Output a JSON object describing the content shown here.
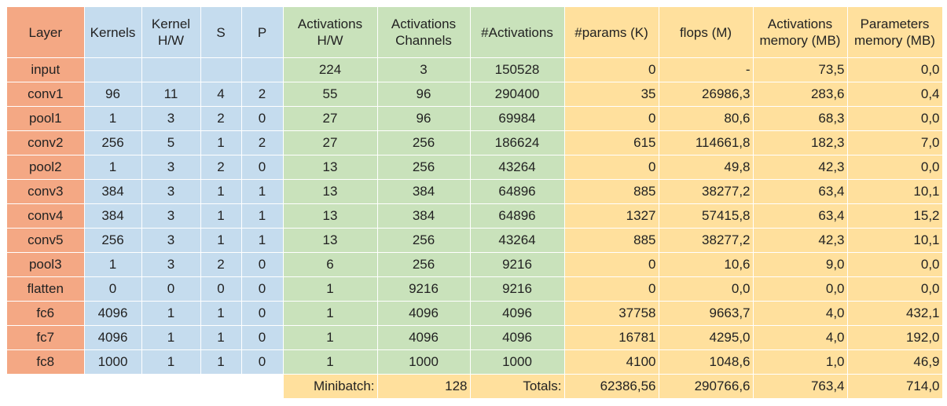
{
  "headers": [
    "Layer",
    "Kernels",
    "Kernel H/W",
    "S",
    "P",
    "Activations H/W",
    "Activations Channels",
    "#Activations",
    "#params (K)",
    "flops (M)",
    "Activations memory (MB)",
    "Parameters memory (MB)"
  ],
  "headers_display": [
    [
      "Layer"
    ],
    [
      "Kernels"
    ],
    [
      "Kernel",
      "H/W"
    ],
    [
      "S"
    ],
    [
      "P"
    ],
    [
      "Activations",
      "H/W"
    ],
    [
      "Activations",
      "Channels"
    ],
    [
      "#Activations"
    ],
    [
      "#params (K)"
    ],
    [
      "flops (M)"
    ],
    [
      "Activations",
      "memory (MB)"
    ],
    [
      "Parameters",
      "memory (MB)"
    ]
  ],
  "rows": [
    [
      "input",
      "",
      "",
      "",
      "",
      "224",
      "3",
      "150528",
      "0",
      "-",
      "73,5",
      "0,0"
    ],
    [
      "conv1",
      "96",
      "11",
      "4",
      "2",
      "55",
      "96",
      "290400",
      "35",
      "26986,3",
      "283,6",
      "0,4"
    ],
    [
      "pool1",
      "1",
      "3",
      "2",
      "0",
      "27",
      "96",
      "69984",
      "0",
      "80,6",
      "68,3",
      "0,0"
    ],
    [
      "conv2",
      "256",
      "5",
      "1",
      "2",
      "27",
      "256",
      "186624",
      "615",
      "114661,8",
      "182,3",
      "7,0"
    ],
    [
      "pool2",
      "1",
      "3",
      "2",
      "0",
      "13",
      "256",
      "43264",
      "0",
      "49,8",
      "42,3",
      "0,0"
    ],
    [
      "conv3",
      "384",
      "3",
      "1",
      "1",
      "13",
      "384",
      "64896",
      "885",
      "38277,2",
      "63,4",
      "10,1"
    ],
    [
      "conv4",
      "384",
      "3",
      "1",
      "1",
      "13",
      "384",
      "64896",
      "1327",
      "57415,8",
      "63,4",
      "15,2"
    ],
    [
      "conv5",
      "256",
      "3",
      "1",
      "1",
      "13",
      "256",
      "43264",
      "885",
      "38277,2",
      "42,3",
      "10,1"
    ],
    [
      "pool3",
      "1",
      "3",
      "2",
      "0",
      "6",
      "256",
      "9216",
      "0",
      "10,6",
      "9,0",
      "0,0"
    ],
    [
      "flatten",
      "0",
      "0",
      "0",
      "0",
      "1",
      "9216",
      "9216",
      "0",
      "0,0",
      "0,0",
      "0,0"
    ],
    [
      "fc6",
      "4096",
      "1",
      "1",
      "0",
      "1",
      "4096",
      "4096",
      "37758",
      "9663,7",
      "4,0",
      "432,1"
    ],
    [
      "fc7",
      "4096",
      "1",
      "1",
      "0",
      "1",
      "4096",
      "4096",
      "16781",
      "4295,0",
      "4,0",
      "192,0"
    ],
    [
      "fc8",
      "1000",
      "1",
      "1",
      "0",
      "1",
      "1000",
      "1000",
      "4100",
      "1048,6",
      "1,0",
      "46,9"
    ]
  ],
  "footer": {
    "minibatch_label": "Minibatch:",
    "minibatch_value": "128",
    "totals_label": "Totals:",
    "totals": [
      "62386,56",
      "290766,6",
      "763,4",
      "714,0"
    ]
  },
  "colors": {
    "layer": "#f4a884",
    "kernel_group": "#c5dcee",
    "activation_group": "#c9e2bb",
    "memory_group": "#ffe09d"
  }
}
